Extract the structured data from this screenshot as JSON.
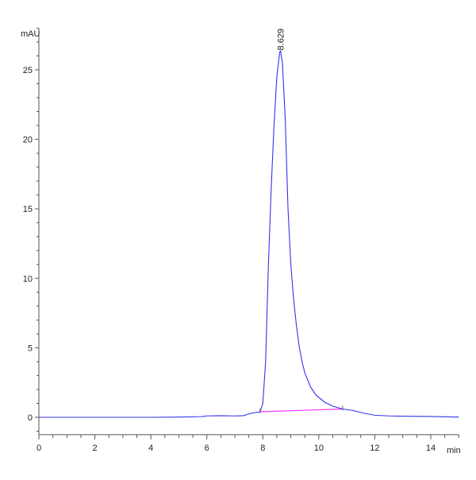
{
  "chart_data": {
    "type": "line",
    "title": "",
    "xlabel": "min",
    "ylabel": "mAU",
    "xlim": [
      0,
      15
    ],
    "ylim": [
      -1.25,
      28
    ],
    "x_ticks": [
      0,
      2,
      4,
      6,
      8,
      10,
      12,
      14
    ],
    "y_ticks": [
      0,
      5,
      10,
      15,
      20,
      25
    ],
    "grid": false,
    "colors": {
      "signal": "#3333ee",
      "baseline": "#ff33ff",
      "axis": "#555555"
    },
    "series": [
      {
        "x": [
          0,
          1,
          2,
          3,
          4,
          5,
          5.8,
          6,
          6.5,
          7,
          7.3,
          7.6,
          7.9,
          8.0,
          8.1,
          8.2,
          8.3,
          8.4,
          8.5,
          8.6,
          8.63,
          8.7,
          8.8,
          8.9,
          9.0,
          9.1,
          9.2,
          9.3,
          9.4,
          9.5,
          9.7,
          9.9,
          10.2,
          10.5,
          10.85,
          11.2,
          11.6,
          12,
          12.5,
          13,
          14,
          15
        ],
        "y": [
          0,
          0,
          0,
          0,
          0,
          0.02,
          0.05,
          0.1,
          0.12,
          0.1,
          0.12,
          0.3,
          0.4,
          1,
          4,
          11,
          16.5,
          21,
          24.5,
          26.2,
          26.4,
          25.5,
          21.5,
          15,
          11,
          8.5,
          6.6,
          5.1,
          4.0,
          3.2,
          2.2,
          1.6,
          1.1,
          0.8,
          0.6,
          0.5,
          0.3,
          0.15,
          0.1,
          0.08,
          0.06,
          0.02
        ]
      }
    ],
    "baseline_segment": {
      "x": [
        7.9,
        10.85
      ],
      "y": [
        0.4,
        0.6
      ]
    },
    "annotations": [
      {
        "x": 8.629,
        "y": 26.4,
        "text": "8.629"
      }
    ]
  }
}
